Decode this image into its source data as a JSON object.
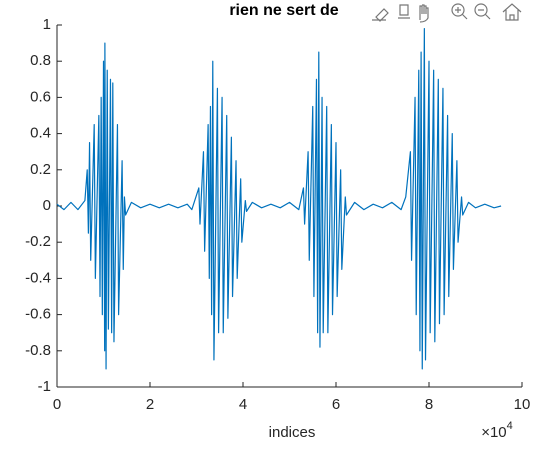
{
  "chart_data": {
    "type": "line",
    "title": "rien ne sert de",
    "xlabel": "indices",
    "x_multiplier": {
      "base": "×10",
      "exponent": "4"
    },
    "xlim": [
      0,
      100000
    ],
    "xticks": [
      {
        "value": 0,
        "label": "0"
      },
      {
        "value": 20000,
        "label": "2"
      },
      {
        "value": 40000,
        "label": "4"
      },
      {
        "value": 60000,
        "label": "6"
      },
      {
        "value": 80000,
        "label": "8"
      },
      {
        "value": 100000,
        "label": "10"
      }
    ],
    "ylim": [
      -1,
      1
    ],
    "yticks": [
      -1,
      -0.8,
      -0.6,
      -0.4,
      -0.2,
      0,
      0.2,
      0.4,
      0.6,
      0.8,
      1
    ],
    "grid": false,
    "series": [
      {
        "color": "#0072bd",
        "x": [
          0,
          1500,
          3000,
          4500,
          6000,
          6500,
          6750,
          7000,
          7250,
          8000,
          8250,
          9000,
          9250,
          9500,
          9750,
          10000,
          10250,
          10300,
          10550,
          10800,
          11050,
          11500,
          11750,
          12000,
          12250,
          13000,
          13250,
          14000,
          14250,
          14500,
          14750,
          16000,
          18000,
          20000,
          22000,
          24000,
          26000,
          28000,
          29000,
          30500,
          30750,
          31500,
          31750,
          32500,
          32750,
          33000,
          33250,
          33500,
          33750,
          34500,
          34750,
          35500,
          35750,
          36500,
          36750,
          37500,
          37750,
          38500,
          38750,
          39500,
          39750,
          40500,
          40750,
          42000,
          44000,
          46000,
          48000,
          50000,
          52000,
          53000,
          53250,
          54000,
          54250,
          55000,
          55250,
          55800,
          56050,
          56300,
          56550,
          57000,
          57250,
          58000,
          58250,
          59000,
          59250,
          60000,
          60250,
          61000,
          61250,
          62000,
          62250,
          64000,
          66000,
          68000,
          70000,
          72000,
          74000,
          75000,
          76000,
          76250,
          77000,
          77250,
          77800,
          78050,
          78300,
          78550,
          79000,
          79250,
          80000,
          80250,
          81000,
          81250,
          82000,
          82250,
          83000,
          83250,
          84000,
          84250,
          85000,
          85250,
          86000,
          86250,
          87000,
          87250,
          88500,
          90000,
          92000,
          94000,
          95500
        ],
        "values": [
          0.01,
          -0.02,
          0.02,
          -0.02,
          0.03,
          0.2,
          -0.15,
          0.35,
          -0.3,
          0.45,
          -0.4,
          0.5,
          -0.5,
          0.6,
          -0.6,
          0.8,
          -0.8,
          0.9,
          -0.9,
          0.75,
          -0.68,
          0.7,
          -0.7,
          0.68,
          -0.75,
          0.45,
          -0.6,
          0.25,
          -0.35,
          0.05,
          -0.05,
          0.02,
          -0.01,
          0.01,
          -0.01,
          0.01,
          -0.01,
          0.01,
          -0.02,
          0.1,
          -0.1,
          0.3,
          -0.25,
          0.45,
          -0.4,
          0.55,
          -0.6,
          0.8,
          -0.85,
          0.65,
          -0.7,
          0.6,
          -0.7,
          0.5,
          -0.62,
          0.38,
          -0.5,
          0.25,
          -0.4,
          0.15,
          -0.2,
          0.03,
          -0.03,
          0.02,
          -0.01,
          0.01,
          -0.01,
          0.02,
          -0.02,
          0.1,
          -0.1,
          0.3,
          -0.3,
          0.55,
          -0.5,
          0.7,
          -0.7,
          0.85,
          -0.78,
          0.6,
          -0.7,
          0.55,
          -0.7,
          0.45,
          -0.6,
          0.35,
          -0.5,
          0.2,
          -0.35,
          0.05,
          -0.05,
          0.02,
          -0.02,
          0.01,
          -0.01,
          0.02,
          -0.02,
          0.05,
          0.3,
          -0.3,
          0.6,
          -0.6,
          0.75,
          -0.8,
          0.85,
          -0.9,
          0.98,
          -0.85,
          0.8,
          -0.7,
          0.75,
          -0.75,
          0.7,
          -0.65,
          0.65,
          -0.6,
          0.5,
          -0.5,
          0.4,
          -0.35,
          0.25,
          -0.2,
          0.05,
          -0.05,
          0.02,
          -0.01,
          0.01,
          -0.01,
          0
        ]
      }
    ]
  }
}
